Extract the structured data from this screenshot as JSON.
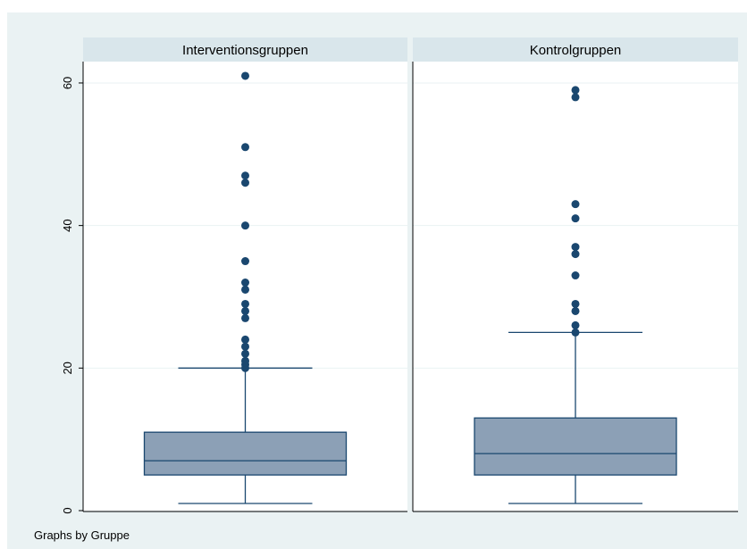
{
  "colors": {
    "outer_background": "#eaf2f3",
    "panel_background": "#ffffff",
    "strip_background": "#d9e6eb",
    "box_fill": "#8ca0b6",
    "line": "#1a476f",
    "marker": "#1a476f",
    "grid": "#eaf2f3",
    "text": "#000000"
  },
  "note": "Graphs by Gruppe",
  "chart_data": {
    "type": "box",
    "by_label": "Gruppe",
    "ylim": [
      0,
      63
    ],
    "yticks": [
      0,
      20,
      40,
      60
    ],
    "y_tick_labels": [
      "0",
      "20",
      "40",
      "60"
    ],
    "grid": true,
    "panels": [
      {
        "title": "Interventionsgruppen",
        "whisker_low": 1,
        "q1": 5,
        "median": 7,
        "q3": 11,
        "whisker_high": 20,
        "outliers": [
          20,
          20.5,
          21,
          22,
          23,
          24,
          27,
          28,
          29,
          31,
          32,
          35,
          40,
          46,
          47,
          51,
          61
        ]
      },
      {
        "title": "Kontrolgruppen",
        "whisker_low": 1,
        "q1": 5,
        "median": 8,
        "q3": 13,
        "whisker_high": 25,
        "outliers": [
          25,
          26,
          28,
          29,
          33,
          36,
          37,
          41,
          43,
          58,
          59
        ]
      }
    ]
  }
}
